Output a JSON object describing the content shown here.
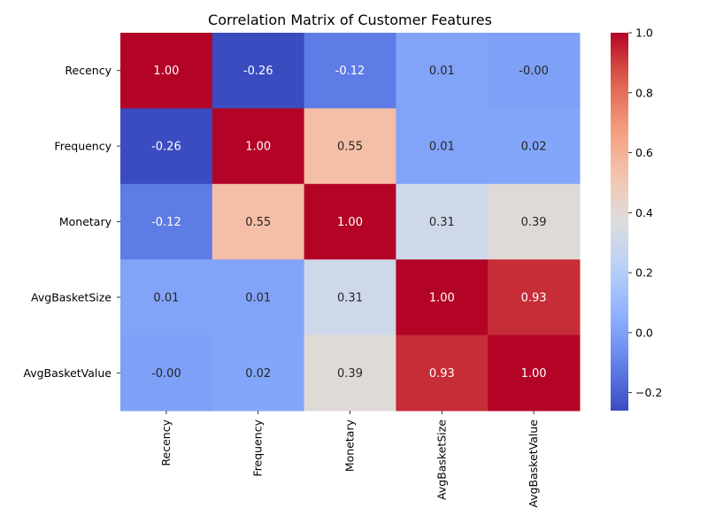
{
  "chart_data": {
    "type": "heatmap",
    "title": "Correlation Matrix of Customer Features",
    "xlabel": "",
    "ylabel": "",
    "row_labels": [
      "Recency",
      "Frequency",
      "Monetary",
      "AvgBasketSize",
      "AvgBasketValue"
    ],
    "col_labels": [
      "Recency",
      "Frequency",
      "Monetary",
      "AvgBasketSize",
      "AvgBasketValue"
    ],
    "values": [
      [
        1.0,
        -0.26,
        -0.12,
        0.01,
        -0.0
      ],
      [
        -0.26,
        1.0,
        0.55,
        0.01,
        0.02
      ],
      [
        -0.12,
        0.55,
        1.0,
        0.31,
        0.39
      ],
      [
        0.01,
        0.01,
        0.31,
        1.0,
        0.93
      ],
      [
        -0.0,
        0.02,
        0.39,
        0.93,
        1.0
      ]
    ],
    "value_labels": [
      [
        "1.00",
        "-0.26",
        "-0.12",
        "0.01",
        "-0.00"
      ],
      [
        "-0.26",
        "1.00",
        "0.55",
        "0.01",
        "0.02"
      ],
      [
        "-0.12",
        "0.55",
        "1.00",
        "0.31",
        "0.39"
      ],
      [
        "0.01",
        "0.01",
        "0.31",
        "1.00",
        "0.93"
      ],
      [
        "-0.00",
        "0.02",
        "0.39",
        "0.93",
        "1.00"
      ]
    ],
    "colormap": "coolwarm",
    "vmin": -0.26,
    "vmax": 1.0,
    "colorbar_ticks": [
      -0.2,
      0.0,
      0.2,
      0.4,
      0.6,
      0.8,
      1.0
    ],
    "colorbar_tick_labels": [
      "−0.2",
      "0.0",
      "0.2",
      "0.4",
      "0.6",
      "0.8",
      "1.0"
    ],
    "grid": false,
    "legend": "colorbar-right"
  }
}
